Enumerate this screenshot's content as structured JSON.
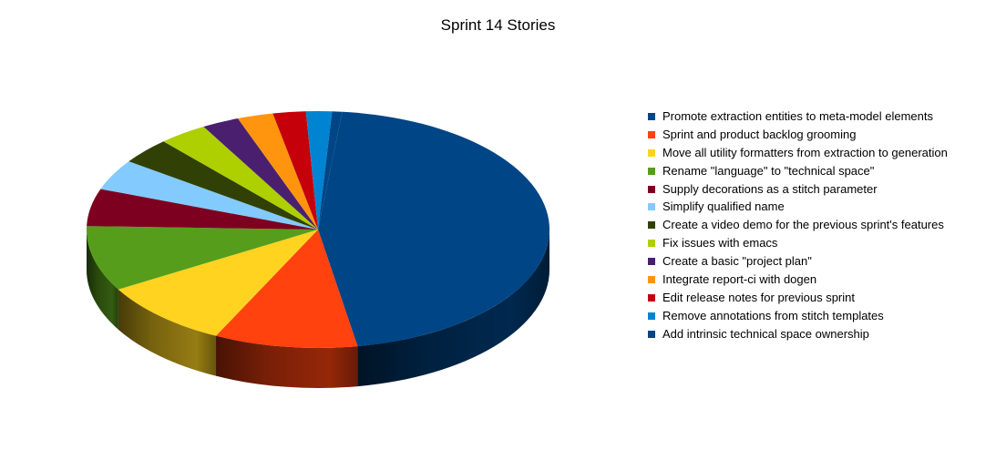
{
  "chart_data": {
    "type": "pie",
    "title": "Sprint 14 Stories",
    "legend_position": "right",
    "style": "3d",
    "slices": [
      {
        "label": "Promote extraction entities to meta-model elements",
        "value": 45.6,
        "color": "#004586"
      },
      {
        "label": "Sprint and product backlog grooming",
        "value": 10.0,
        "color": "#ff420e"
      },
      {
        "label": "Move all utility formatters from extraction to generation",
        "value": 9.3,
        "color": "#ffd320"
      },
      {
        "label": "Rename \"language\" to \"technical space\"",
        "value": 8.9,
        "color": "#579d1c"
      },
      {
        "label": "Supply decorations as a stitch parameter",
        "value": 5.1,
        "color": "#7e0021"
      },
      {
        "label": "Simplify qualified name",
        "value": 4.2,
        "color": "#83caff"
      },
      {
        "label": "Create a video demo for the previous sprint's features",
        "value": 3.6,
        "color": "#314004"
      },
      {
        "label": "Fix issues with emacs",
        "value": 3.4,
        "color": "#aecf00"
      },
      {
        "label": "Create a basic \"project plan\"",
        "value": 2.6,
        "color": "#4b1f6f"
      },
      {
        "label": "Integrate report-ci with dogen",
        "value": 2.5,
        "color": "#ff950e"
      },
      {
        "label": "Edit release notes for previous sprint",
        "value": 2.3,
        "color": "#c5000b"
      },
      {
        "label": "Remove annotations from stitch templates",
        "value": 1.8,
        "color": "#0084d1"
      },
      {
        "label": "Add intrinsic technical space ownership",
        "value": 0.7,
        "color": "#004586"
      }
    ]
  }
}
